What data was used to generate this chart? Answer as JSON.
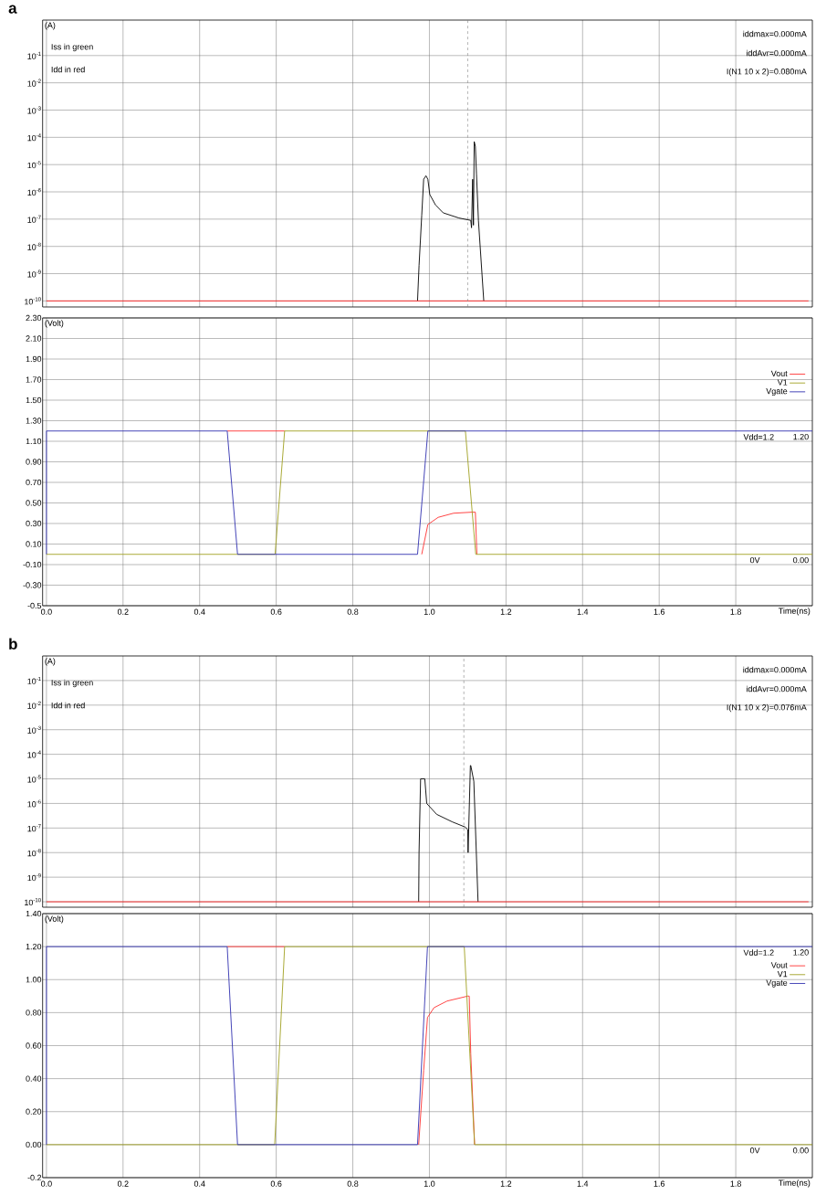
{
  "chart_data": [
    {
      "type": "line",
      "title": "a",
      "ylabel": "(A)",
      "log": true,
      "grid": true,
      "tick_labels": "y",
      "xlim": [
        -0.01,
        2.0
      ],
      "ylim": [
        6e-11,
        2
      ],
      "xticks": [
        {
          "value": 0,
          "label": null
        },
        {
          "value": 0.2,
          "label": null
        },
        {
          "value": 0.4,
          "label": null
        },
        {
          "value": 0.6,
          "label": null
        },
        {
          "value": 0.8,
          "label": null
        },
        {
          "value": 1.0,
          "label": null
        },
        {
          "value": 1.2,
          "label": null
        },
        {
          "value": 1.4,
          "label": null
        },
        {
          "value": 1.6,
          "label": null
        },
        {
          "value": 1.8,
          "label": null
        }
      ],
      "yticks": [
        {
          "value": 0.1,
          "label": "10$^{-1}$"
        },
        {
          "value": 0.01,
          "label": "10$^{-2}$"
        },
        {
          "value": 0.001,
          "label": "10$^{-3}$"
        },
        {
          "value": 0.0001,
          "label": "10$^{-4}$"
        },
        {
          "value": 1e-05,
          "label": "10$^{-5}$"
        },
        {
          "value": 1e-06,
          "label": "10$^{-6}$"
        },
        {
          "value": 1e-07,
          "label": "10$^{-7}$"
        },
        {
          "value": 1e-08,
          "label": "10$^{-8}$"
        },
        {
          "value": 1e-09,
          "label": "10$^{-9}$"
        },
        {
          "value": 1e-10,
          "label": "10$^{-10}$"
        }
      ],
      "series": [
        {
          "color": "#000000",
          "x": [
            0.969,
            0.973,
            0.98,
            0.985,
            0.991,
            0.996,
            1.001,
            1.016,
            1.036,
            1.077,
            1.108,
            1.11,
            1.113,
            1.115,
            1.117,
            1.12,
            1.123,
            1.128,
            1.142
          ],
          "values": [
            1e-10,
            2e-09,
            1.4e-07,
            2.9e-06,
            3.9e-06,
            2.9e-06,
            8e-07,
            3.3e-07,
            1.7e-07,
            1.1e-07,
            9e-08,
            4.8e-08,
            2.9e-06,
            6e-08,
            7e-05,
            4.7e-05,
            4.4e-06,
            9e-08,
            1e-10
          ]
        },
        {
          "color": "#ff2020",
          "x": [
            0,
            1.99
          ],
          "values": [
            1e-10,
            1e-10
          ]
        }
      ],
      "ref_lines": [
        {
          "axis": "x",
          "value": 1.1,
          "color": "#808080",
          "line_style": "dashed"
        }
      ],
      "annotations": [
        "Iss in green",
        "Idd in red",
        "iddmax=0.000mA",
        "iddAvr=0.000mA",
        "I(N1 10 x 2)=0.080mA"
      ]
    },
    {
      "type": "line",
      "ylabel": "(Volt)",
      "xlabel": "Time(ns)",
      "grid": true,
      "legend": "top right",
      "xlim": [
        -0.01,
        2.0
      ],
      "ylim": [
        -0.5,
        2.3
      ],
      "xticks": [
        {
          "value": 0,
          "label": "0.0"
        },
        0.2,
        0.4,
        0.6,
        0.8,
        {
          "value": 1.0,
          "label": "1.0"
        },
        1.2,
        1.4,
        1.6,
        1.8
      ],
      "yticks": [
        {
          "value": 2.3,
          "label": "2.30"
        },
        {
          "value": 2.1,
          "label": "2.10"
        },
        {
          "value": 1.9,
          "label": "1.90"
        },
        {
          "value": 1.7,
          "label": "1.70"
        },
        {
          "value": 1.5,
          "label": "1.50"
        },
        {
          "value": 1.3,
          "label": "1.30"
        },
        {
          "value": 1.1,
          "label": "1.10"
        },
        {
          "value": 0.9,
          "label": "0.90"
        },
        {
          "value": 0.7,
          "label": "0.70"
        },
        {
          "value": 0.5,
          "label": "0.50"
        },
        {
          "value": 0.3,
          "label": "0.30"
        },
        {
          "value": 0.1,
          "label": "0.10"
        },
        {
          "value": -0.1,
          "label": "-0.10"
        },
        {
          "value": -0.3,
          "label": "-0.30"
        },
        -0.5
      ],
      "series": [
        {
          "name": "Vout",
          "color": "#ff3030",
          "x": [
            0.472,
            0.622,
            0.8,
            0.98,
            0.996,
            1.023,
            1.063,
            1.111,
            1.12,
            1.124
          ],
          "values": [
            1.2,
            1.2,
            null,
            0,
            0.29,
            0.36,
            0.4,
            0.41,
            0.41,
            0
          ]
        },
        {
          "name": "V1",
          "color": "#a0a020",
          "x": [
            0,
            0.597,
            0.622,
            1.094,
            1.121,
            2.0
          ],
          "values": [
            0,
            0,
            1.2,
            1.2,
            0,
            0
          ]
        },
        {
          "name": "Vgate",
          "color": "#3030b0",
          "x": [
            0,
            0,
            0.472,
            0.499,
            0.969,
            0.996,
            2.0
          ],
          "values": [
            0,
            1.2,
            1.2,
            0,
            0,
            1.2,
            1.2
          ]
        }
      ],
      "annotations": [
        {
          "text": "Vdd=1.2",
          "x": 1.86,
          "y": 1.2
        },
        {
          "text": "1.20",
          "x": 1.97,
          "y": 1.2
        },
        {
          "text": "0V",
          "x": 1.85,
          "y": 0
        },
        {
          "text": "0.00",
          "x": 1.97,
          "y": 0
        }
      ]
    },
    {
      "type": "line",
      "title": "b",
      "ylabel": "(A)",
      "log": true,
      "grid": true,
      "tick_labels": "y",
      "xlim": [
        -0.01,
        2.0
      ],
      "ylim": [
        6e-11,
        1
      ],
      "xticks": [
        {
          "value": 0,
          "label": null
        },
        {
          "value": 0.2,
          "label": null
        },
        {
          "value": 0.4,
          "label": null
        },
        {
          "value": 0.6,
          "label": null
        },
        {
          "value": 0.8,
          "label": null
        },
        {
          "value": 1.0,
          "label": null
        },
        {
          "value": 1.2,
          "label": null
        },
        {
          "value": 1.4,
          "label": null
        },
        {
          "value": 1.6,
          "label": null
        },
        {
          "value": 1.8,
          "label": null
        }
      ],
      "yticks": [
        {
          "value": 0.1,
          "label": "10$^{-1}$"
        },
        {
          "value": 0.01,
          "label": "10$^{-2}$"
        },
        {
          "value": 0.001,
          "label": "10$^{-3}$"
        },
        {
          "value": 0.0001,
          "label": "10$^{-4}$"
        },
        {
          "value": 1e-05,
          "label": "10$^{-5}$"
        },
        {
          "value": 1e-06,
          "label": "10$^{-6}$"
        },
        {
          "value": 1e-07,
          "label": "10$^{-7}$"
        },
        {
          "value": 1e-08,
          "label": "10$^{-8}$"
        },
        {
          "value": 1e-09,
          "label": "10$^{-9}$"
        },
        {
          "value": 1e-10,
          "label": "10$^{-10}$"
        }
      ],
      "series": [
        {
          "color": "#000000",
          "x": [
            0.972,
            0.973,
            0.977,
            0.988,
            0.993,
            1.019,
            1.059,
            1.093,
            1.1,
            1.101,
            1.107,
            1.108,
            1.116,
            1.127
          ],
          "values": [
            1e-10,
            1e-08,
            1e-05,
            1e-05,
            1e-06,
            3.6e-07,
            1.8e-07,
            1.1e-07,
            8.7e-08,
            1e-08,
            3.5e-05,
            3.5e-05,
            8e-06,
            1e-10
          ]
        },
        {
          "color": "#ff2020",
          "x": [
            0,
            1.99
          ],
          "values": [
            1e-10,
            1e-10
          ]
        }
      ],
      "ref_lines": [
        {
          "axis": "x",
          "value": 1.09,
          "color": "#808080",
          "line_style": "dashed"
        }
      ],
      "annotations": [
        "Iss in green",
        "Idd in red",
        "iddmax=0.000mA",
        "iddAvr=0.000mA",
        "I(N1 10 x 2)=0.076mA"
      ]
    },
    {
      "type": "line",
      "ylabel": "(Volt)",
      "xlabel": "Time(ns)",
      "grid": true,
      "legend": "top right",
      "xlim": [
        -0.01,
        2.0
      ],
      "ylim": [
        -0.2,
        1.4
      ],
      "xticks": [
        {
          "value": 0,
          "label": "0.0"
        },
        0.2,
        0.4,
        0.6,
        0.8,
        {
          "value": 1.0,
          "label": "1.0"
        },
        1.2,
        1.4,
        1.6,
        1.8
      ],
      "yticks": [
        {
          "value": 1.4,
          "label": "1.40"
        },
        {
          "value": 1.2,
          "label": "1.20"
        },
        {
          "value": 1.0,
          "label": "1.00"
        },
        {
          "value": 0.8,
          "label": "0.80"
        },
        {
          "value": 0.6,
          "label": "0.60"
        },
        {
          "value": 0.4,
          "label": "0.40"
        },
        {
          "value": 0.2,
          "label": "0.20"
        },
        {
          "value": 0,
          "label": "0.00"
        },
        -0.2
      ],
      "series": [
        {
          "name": "Vout",
          "color": "#ff3030",
          "x": [
            0.472,
            0.622,
            0.8,
            0.972,
            0.985,
            0.995,
            1.012,
            1.046,
            1.1,
            1.104,
            1.108,
            1.118
          ],
          "values": [
            1.2,
            1.2,
            null,
            0,
            0.45,
            0.77,
            0.83,
            0.87,
            0.9,
            0.9,
            0.55,
            0
          ]
        },
        {
          "name": "V1",
          "color": "#a0a020",
          "x": [
            0,
            0.596,
            0.622,
            1.091,
            1.118,
            2.0
          ],
          "values": [
            0,
            0,
            1.2,
            1.2,
            0,
            0
          ]
        },
        {
          "name": "Vgate",
          "color": "#3030b0",
          "x": [
            0,
            0,
            0.472,
            0.499,
            0.969,
            0.995,
            2.0
          ],
          "values": [
            0,
            1.2,
            1.2,
            0,
            0,
            1.2,
            1.2
          ]
        }
      ],
      "annotations": [
        {
          "text": "Vdd=1.2",
          "x": 1.86,
          "y": 1.2
        },
        {
          "text": "1.20",
          "x": 1.97,
          "y": 1.2
        },
        {
          "text": "0V",
          "x": 1.85,
          "y": 0
        },
        {
          "text": "0.00",
          "x": 1.97,
          "y": 0
        }
      ]
    }
  ]
}
